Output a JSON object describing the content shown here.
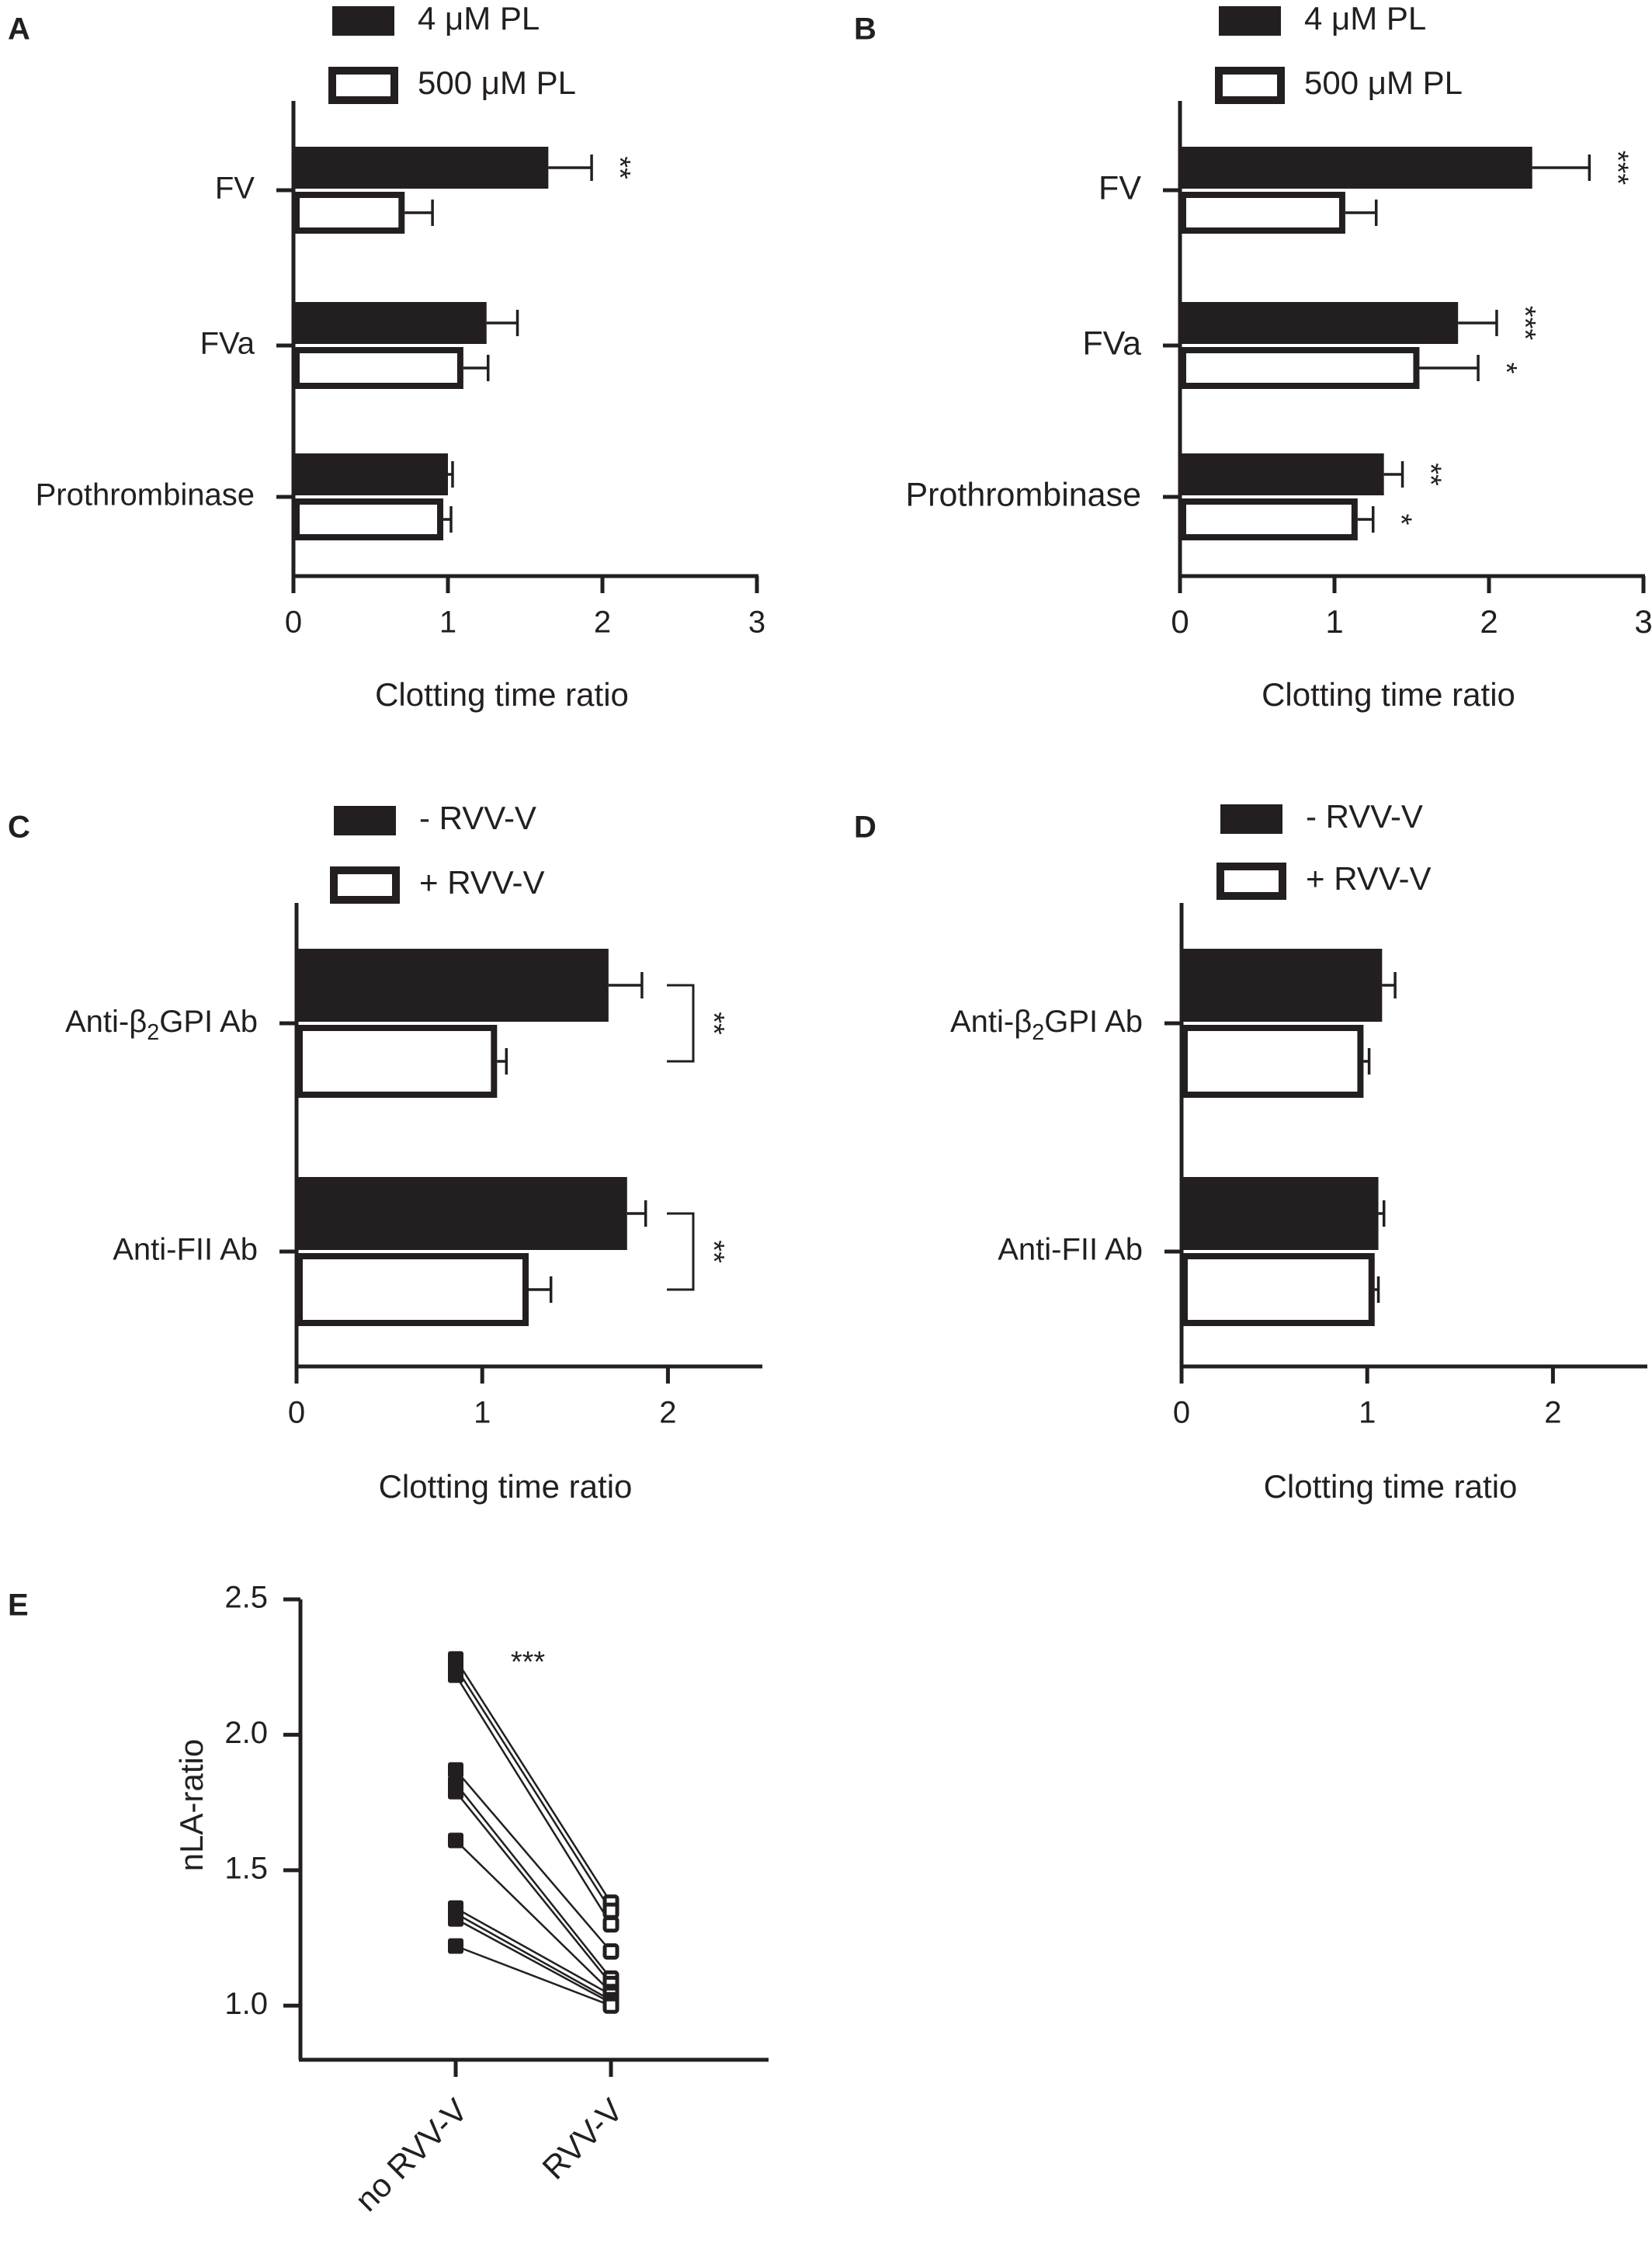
{
  "chart_data": [
    {
      "panel": "A",
      "type": "bar",
      "orientation": "horizontal",
      "categories": [
        "FV",
        "FVa",
        "Prothrombinase"
      ],
      "series": [
        {
          "name": "4 μM PL",
          "values": [
            1.65,
            1.25,
            1.0
          ],
          "errors": [
            0.28,
            0.2,
            0.03
          ]
        },
        {
          "name": "500 μM PL",
          "values": [
            0.72,
            1.1,
            0.97
          ],
          "errors": [
            0.18,
            0.16,
            0.05
          ]
        }
      ],
      "xlabel": "Clotting time ratio",
      "xlim": [
        0,
        3
      ],
      "xticks": [
        "0",
        "1",
        "2",
        "3"
      ],
      "significance": [
        {
          "category": 0,
          "series": 0,
          "label": "**"
        }
      ]
    },
    {
      "panel": "B",
      "type": "bar",
      "orientation": "horizontal",
      "categories": [
        "FV",
        "FVa",
        "Prothrombinase"
      ],
      "series": [
        {
          "name": "4 μM PL",
          "values": [
            2.28,
            1.8,
            1.32
          ],
          "errors": [
            0.37,
            0.25,
            0.12
          ]
        },
        {
          "name": "500 μM PL",
          "values": [
            1.07,
            1.55,
            1.15
          ],
          "errors": [
            0.2,
            0.38,
            0.1
          ]
        }
      ],
      "xlabel": "Clotting time ratio",
      "xlim": [
        0,
        3
      ],
      "xticks": [
        "0",
        "1",
        "2",
        "3"
      ],
      "significance": [
        {
          "category": 0,
          "series": 0,
          "label": "***"
        },
        {
          "category": 1,
          "series": 0,
          "label": "***"
        },
        {
          "category": 1,
          "series": 1,
          "label": "*"
        },
        {
          "category": 2,
          "series": 0,
          "label": "**"
        },
        {
          "category": 2,
          "series": 1,
          "label": "*"
        }
      ]
    },
    {
      "panel": "C",
      "type": "bar",
      "orientation": "horizontal",
      "categories": [
        "Anti-β2GPI Ab",
        "Anti-FII Ab"
      ],
      "series": [
        {
          "name": "- RVV-V",
          "values": [
            1.68,
            1.78
          ],
          "errors": [
            0.18,
            0.1
          ]
        },
        {
          "name": "+ RVV-V",
          "values": [
            1.08,
            1.25
          ],
          "errors": [
            0.05,
            0.12
          ]
        }
      ],
      "xlabel": "Clotting time ratio",
      "xlim": [
        0,
        2.5
      ],
      "xticks": [
        "0",
        "1",
        "2"
      ],
      "significance": [
        {
          "category": 0,
          "bracket": true,
          "label": "**"
        },
        {
          "category": 1,
          "bracket": true,
          "label": "**"
        }
      ]
    },
    {
      "panel": "D",
      "type": "bar",
      "orientation": "horizontal",
      "categories": [
        "Anti-β2GPI Ab",
        "Anti-FII Ab"
      ],
      "series": [
        {
          "name": "- RVV-V",
          "values": [
            1.08,
            1.06
          ],
          "errors": [
            0.07,
            0.03
          ]
        },
        {
          "name": "+ RVV-V",
          "values": [
            0.98,
            1.04
          ],
          "errors": [
            0.03,
            0.02
          ]
        }
      ],
      "xlabel": "Clotting time ratio",
      "xlim": [
        0,
        2.5
      ],
      "xticks": [
        "0",
        "1",
        "2"
      ],
      "significance": []
    },
    {
      "panel": "E",
      "type": "scatter",
      "paired": true,
      "categories": [
        "no RVV-V",
        "RVV-V"
      ],
      "pairs": [
        [
          2.28,
          1.38
        ],
        [
          2.25,
          1.35
        ],
        [
          2.22,
          1.3
        ],
        [
          1.87,
          1.2
        ],
        [
          1.82,
          1.1
        ],
        [
          1.79,
          1.08
        ],
        [
          1.61,
          1.05
        ],
        [
          1.36,
          1.04
        ],
        [
          1.34,
          1.02
        ],
        [
          1.32,
          1.01
        ],
        [
          1.22,
          1.0
        ]
      ],
      "ylabel": "nLA-ratio",
      "ylim": [
        0.8,
        2.5
      ],
      "yticks": [
        "1.0",
        "1.5",
        "2.0",
        "2.5"
      ],
      "significance": [
        {
          "label": "***"
        }
      ]
    }
  ]
}
